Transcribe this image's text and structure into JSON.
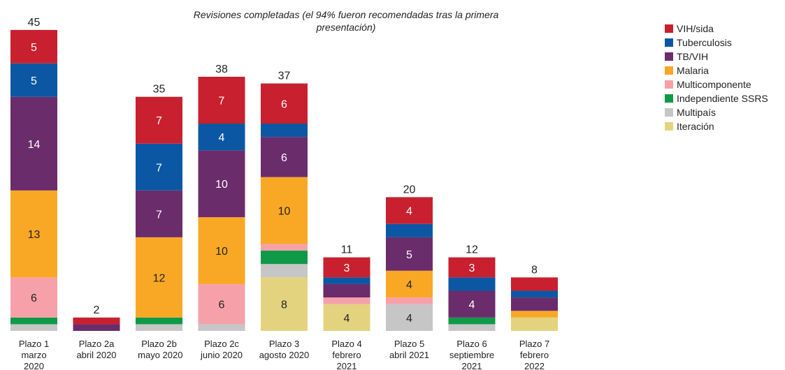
{
  "chart_data": {
    "type": "stacked_bar",
    "title": "Revisiones completadas (el 94% fueron recomendadas tras la primera presentación)",
    "categories": [
      "Plazo 1\nmarzo\n2020",
      "Plazo 2a\nabril 2020",
      "Plazo 2b\n mayo 2020",
      "Plazo 2c\njunio 2020",
      "Plazo 3\nagosto 2020",
      "Plazo 4\nfebrero\n2021",
      "Plazo 5\nabril 2021",
      "Plazo 6\nseptiembre\n2021",
      "Plazo 7\nfebrero\n2022"
    ],
    "totals": [
      45,
      2,
      35,
      38,
      37,
      11,
      20,
      12,
      8
    ],
    "series": [
      {
        "name": "VIH/sida",
        "color": "#c8202f",
        "values": [
          5,
          1,
          7,
          7,
          6,
          3,
          4,
          3,
          2
        ]
      },
      {
        "name": "Tuberculosis",
        "color": "#0c57a3",
        "values": [
          5,
          null,
          7,
          4,
          2,
          1,
          2,
          2,
          1
        ]
      },
      {
        "name": "TB/VIH",
        "color": "#6a2c6b",
        "values": [
          14,
          1,
          7,
          10,
          6,
          2,
          5,
          4,
          2
        ]
      },
      {
        "name": "Malaria",
        "color": "#f9a825",
        "values": [
          13,
          null,
          12,
          10,
          10,
          null,
          4,
          null,
          1
        ]
      },
      {
        "name": "Multicomponente",
        "color": "#f6a1a9",
        "values": [
          6,
          null,
          null,
          6,
          1,
          1,
          1,
          null,
          null
        ]
      },
      {
        "name": "Independiente SSRS",
        "color": "#0e9a47",
        "values": [
          1,
          null,
          1,
          null,
          2,
          null,
          null,
          1,
          null
        ]
      },
      {
        "name": "Multipaís",
        "color": "#c6c6c6",
        "values": [
          1,
          null,
          1,
          1,
          2,
          null,
          4,
          1,
          null
        ]
      },
      {
        "name": "Iteración",
        "color": "#e3d37f",
        "values": [
          null,
          null,
          null,
          null,
          8,
          4,
          null,
          null,
          2
        ]
      }
    ]
  }
}
